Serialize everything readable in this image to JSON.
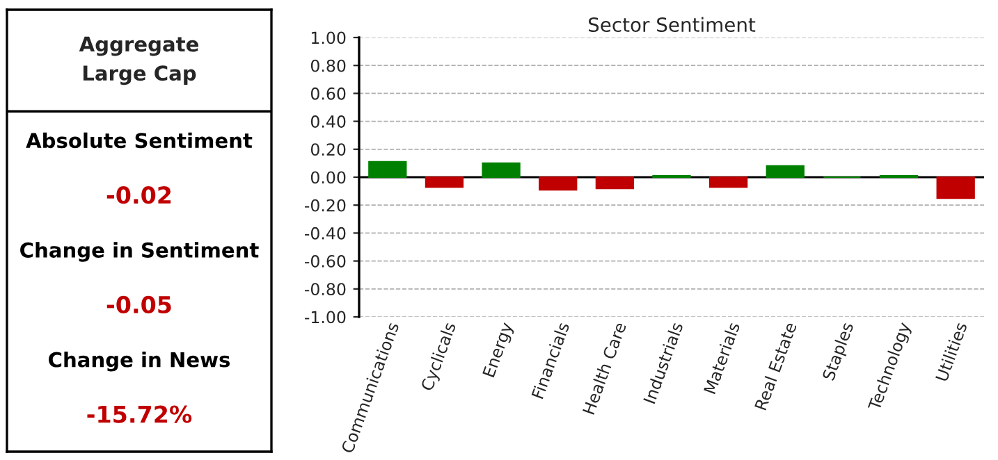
{
  "chart_data": [
    {
      "type": "other",
      "title": "Aggregate\nLarge Cap",
      "annotations": [
        "Absolute Sentiment",
        "-0.02",
        "Change in Sentiment",
        "-0.05",
        "Change in News",
        "-15.72%"
      ]
    },
    {
      "type": "bar",
      "title": "Sector Sentiment",
      "categories": [
        "Communications",
        "Cyclicals",
        "Energy",
        "Financials",
        "Health Care",
        "Industrials",
        "Materials",
        "Real Estate",
        "Staples",
        "Technology",
        "Utilities"
      ],
      "values": [
        0.11,
        -0.07,
        0.1,
        -0.09,
        -0.08,
        0.01,
        -0.07,
        0.08,
        0,
        0.01,
        -0.15
      ],
      "colors": [
        "#008000",
        "#c00000",
        "#008000",
        "#c00000",
        "#c00000",
        "#008000",
        "#c00000",
        "#008000",
        "#008000",
        "#008000",
        "#c00000"
      ],
      "ylim": [
        -1,
        1
      ],
      "yticks": [
        {
          "value": -1,
          "label": "-1.00"
        },
        {
          "value": -0.8,
          "label": "-0.80"
        },
        {
          "value": -0.6,
          "label": "-0.60"
        },
        {
          "value": -0.4,
          "label": "-0.40"
        },
        {
          "value": -0.2,
          "label": "-0.20"
        },
        {
          "value": 0,
          "label": "0.00"
        },
        {
          "value": 0.2,
          "label": "0.20"
        },
        {
          "value": 0.4,
          "label": "0.40"
        },
        {
          "value": 0.6,
          "label": "0.60"
        },
        {
          "value": 0.8,
          "label": "0.80"
        },
        {
          "value": 1,
          "label": "1.00"
        }
      ],
      "grid": "y"
    }
  ]
}
